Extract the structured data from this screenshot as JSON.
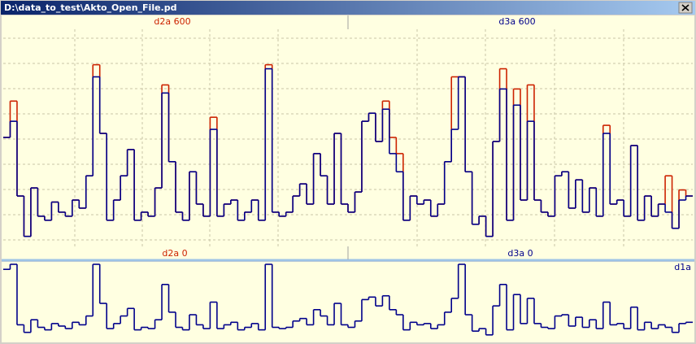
{
  "window": {
    "title": "D:\\data_to_test\\Akto_Open_File.pd"
  },
  "chart_data": [
    {
      "type": "step",
      "grid": true,
      "ylim": [
        0,
        600
      ],
      "top_labels": [
        "d2a 600",
        "d3a 600"
      ],
      "bottom_labels": [
        "d2a 0",
        "d3a 0"
      ],
      "label_colors": [
        "#cc2200",
        "#00008b"
      ],
      "series": [
        {
          "color": "#cc2200",
          "values": [
            300,
            390,
            155,
            55,
            175,
            105,
            95,
            140,
            115,
            105,
            145,
            125,
            205,
            480,
            310,
            95,
            145,
            205,
            270,
            95,
            115,
            105,
            175,
            430,
            240,
            115,
            95,
            215,
            135,
            105,
            350,
            105,
            135,
            145,
            95,
            115,
            145,
            95,
            480,
            115,
            105,
            115,
            155,
            185,
            135,
            260,
            205,
            135,
            310,
            135,
            115,
            165,
            340,
            360,
            290,
            390,
            300,
            260,
            95,
            155,
            135,
            145,
            105,
            135,
            240,
            450,
            450,
            215,
            85,
            105,
            55,
            290,
            470,
            95,
            420,
            145,
            430,
            145,
            115,
            105,
            205,
            215,
            125,
            195,
            115,
            175,
            105,
            330,
            135,
            145,
            105,
            280,
            95,
            155,
            105,
            135,
            205,
            75,
            170,
            155
          ]
        },
        {
          "color": "#00008b",
          "values": [
            300,
            340,
            155,
            55,
            175,
            105,
            95,
            140,
            115,
            105,
            145,
            125,
            205,
            450,
            310,
            95,
            145,
            205,
            270,
            95,
            115,
            105,
            175,
            410,
            240,
            115,
            95,
            215,
            135,
            105,
            320,
            105,
            135,
            145,
            95,
            115,
            145,
            95,
            470,
            115,
            105,
            115,
            155,
            185,
            135,
            260,
            205,
            135,
            310,
            135,
            115,
            165,
            340,
            360,
            290,
            370,
            260,
            215,
            95,
            155,
            135,
            145,
            105,
            135,
            240,
            320,
            450,
            215,
            85,
            105,
            55,
            290,
            420,
            95,
            380,
            145,
            340,
            145,
            115,
            105,
            205,
            215,
            125,
            195,
            115,
            175,
            105,
            310,
            135,
            145,
            105,
            280,
            95,
            155,
            105,
            135,
            115,
            75,
            145,
            155
          ]
        }
      ]
    },
    {
      "type": "step",
      "grid": false,
      "ylim": [
        0,
        600
      ],
      "label": "d1a",
      "series": [
        {
          "color": "#00008b",
          "values": [
            560,
            600,
            120,
            60,
            160,
            100,
            80,
            130,
            110,
            90,
            140,
            120,
            190,
            600,
            290,
            90,
            130,
            190,
            250,
            80,
            100,
            90,
            160,
            440,
            220,
            100,
            80,
            200,
            120,
            90,
            300,
            90,
            120,
            140,
            80,
            100,
            130,
            80,
            600,
            100,
            90,
            100,
            150,
            170,
            120,
            240,
            190,
            120,
            290,
            120,
            100,
            150,
            320,
            340,
            270,
            350,
            240,
            200,
            80,
            140,
            120,
            130,
            90,
            120,
            220,
            330,
            600,
            200,
            70,
            90,
            40,
            270,
            440,
            80,
            360,
            130,
            330,
            130,
            100,
            90,
            190,
            200,
            110,
            180,
            100,
            160,
            90,
            300,
            120,
            130,
            90,
            260,
            80,
            140,
            90,
            120,
            100,
            60,
            130,
            140
          ]
        }
      ]
    }
  ]
}
